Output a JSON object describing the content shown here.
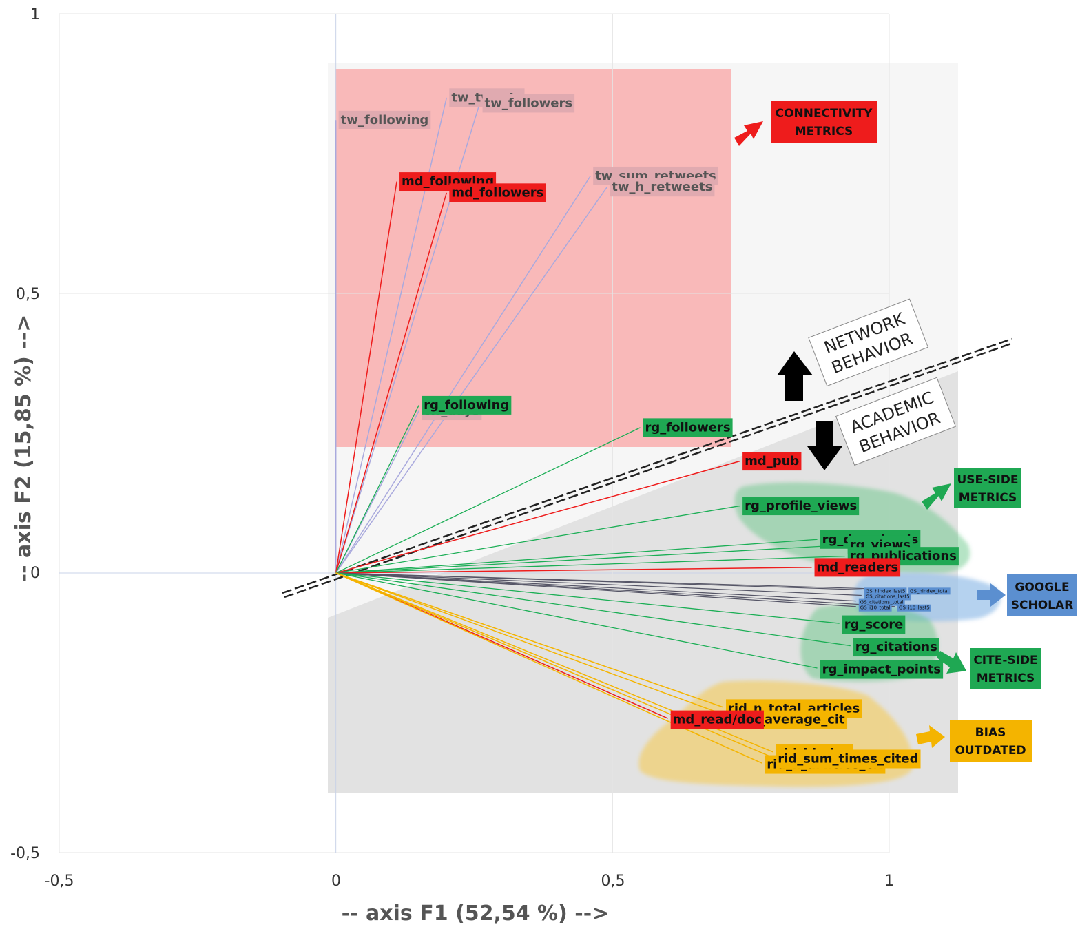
{
  "chart_data": {
    "type": "scatter",
    "xlabel": "-- axis F1 (52,54 %) -->",
    "ylabel": "-- axis F2 (15,85 %) -->",
    "xlim": [
      -0.5,
      1
    ],
    "ylim": [
      -0.5,
      1
    ],
    "x_ticks": [
      "-0,5",
      "0",
      "0,5",
      "1"
    ],
    "y_ticks": [
      "-0,5",
      "0",
      "0,5",
      "1"
    ],
    "grid": true,
    "vectors": [
      {
        "label": "tw_following",
        "x": 0.0,
        "y": 0.81,
        "group": "twitter"
      },
      {
        "label": "tw_tweets",
        "x": 0.2,
        "y": 0.85,
        "group": "twitter"
      },
      {
        "label": "tw_followers",
        "x": 0.26,
        "y": 0.84,
        "group": "twitter"
      },
      {
        "label": "md_following",
        "x": 0.11,
        "y": 0.7,
        "group": "mendeley"
      },
      {
        "label": "md_followers",
        "x": 0.2,
        "y": 0.68,
        "group": "mendeley"
      },
      {
        "label": "tw_sum_retweets",
        "x": 0.46,
        "y": 0.71,
        "group": "twitter"
      },
      {
        "label": "tw_h_retweets",
        "x": 0.49,
        "y": 0.69,
        "group": "twitter"
      },
      {
        "label": "tw_days",
        "x": 0.15,
        "y": 0.29,
        "group": "twitter"
      },
      {
        "label": "rg_following",
        "x": 0.15,
        "y": 0.3,
        "group": "researchgate"
      },
      {
        "label": "rg_followers",
        "x": 0.55,
        "y": 0.26,
        "group": "researchgate"
      },
      {
        "label": "md_pub",
        "x": 0.73,
        "y": 0.2,
        "group": "mendeley"
      },
      {
        "label": "rg_profile_views",
        "x": 0.73,
        "y": 0.12,
        "group": "researchgate"
      },
      {
        "label": "rg_downloads",
        "x": 0.87,
        "y": 0.06,
        "group": "researchgate"
      },
      {
        "label": "rg_views",
        "x": 0.92,
        "y": 0.05,
        "group": "researchgate"
      },
      {
        "label": "rg_publications",
        "x": 0.92,
        "y": 0.03,
        "group": "researchgate"
      },
      {
        "label": "md_readers",
        "x": 0.86,
        "y": 0.01,
        "group": "mendeley"
      },
      {
        "label": "GS_hindex_last5",
        "x": 0.95,
        "y": -0.03,
        "group": "google"
      },
      {
        "label": "GS_hindex_total",
        "x": 1.03,
        "y": -0.03,
        "group": "google"
      },
      {
        "label": "GS_citations_last5",
        "x": 0.95,
        "y": -0.04,
        "group": "google"
      },
      {
        "label": "GS_citations_total",
        "x": 0.94,
        "y": -0.05,
        "group": "google"
      },
      {
        "label": "GS_i10_total",
        "x": 0.94,
        "y": -0.06,
        "group": "google"
      },
      {
        "label": "GS_i10_last5",
        "x": 1.01,
        "y": -0.06,
        "group": "google"
      },
      {
        "label": "rg_score",
        "x": 0.91,
        "y": -0.09,
        "group": "researchgate"
      },
      {
        "label": "rg_citations",
        "x": 0.93,
        "y": -0.13,
        "group": "researchgate"
      },
      {
        "label": "rg_impact_points",
        "x": 0.87,
        "y": -0.17,
        "group": "researchgate"
      },
      {
        "label": "rid_n_total_articles",
        "x": 0.7,
        "y": -0.24,
        "group": "researcherid"
      },
      {
        "label": "rid_average_cit",
        "x": 0.72,
        "y": -0.26,
        "group": "researcherid"
      },
      {
        "label": "md_read/doc",
        "x": 0.6,
        "y": -0.26,
        "group": "mendeley"
      },
      {
        "label": "rid_hindex",
        "x": 0.79,
        "y": -0.32,
        "group": "researcherid"
      },
      {
        "label": "rid_n_articles_cit",
        "x": 0.77,
        "y": -0.34,
        "group": "researcherid"
      },
      {
        "label": "rid_sum_times_cited",
        "x": 0.79,
        "y": -0.33,
        "group": "researcherid"
      }
    ],
    "group_labels": [
      {
        "id": "connectivity",
        "line1": "CONNECTIVITY",
        "line2": "METRICS"
      },
      {
        "id": "use_side",
        "line1": "USE-SIDE",
        "line2": "METRICS"
      },
      {
        "id": "google_scholar",
        "line1": "GOOGLE",
        "line2": "SCHOLAR"
      },
      {
        "id": "cite_side",
        "line1": "CITE-SIDE",
        "line2": "METRICS"
      },
      {
        "id": "bias",
        "line1": "BIAS",
        "line2": "OUTDATED"
      }
    ],
    "behavior_labels": {
      "network": {
        "line1": "NETWORK",
        "line2": "BEHAVIOR"
      },
      "academic": {
        "line1": "ACADEMIC",
        "line2": "BEHAVIOR"
      }
    }
  },
  "colors": {
    "twitter_line": "#a9a9dd",
    "twitter_label_bg": "#e0aab0",
    "twitter_label_text": "#555555",
    "mendeley": "#ee1c1c",
    "researchgate": "#1bae55",
    "researchgate_label_bg": "#1fa853",
    "google": "#5b8fd0",
    "google_line": "#555566",
    "researcherid": "#f4b400",
    "connectivity_zone": "#f9b9b9",
    "academic_zone": "#e2e2e2",
    "network_zone": "#f6f6f6"
  }
}
